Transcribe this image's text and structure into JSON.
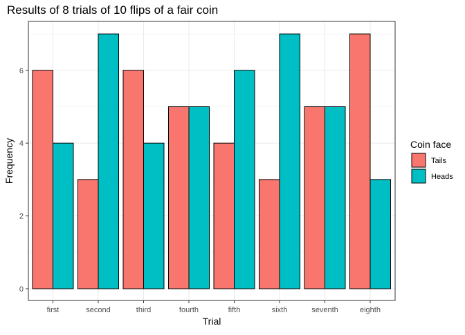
{
  "chart_data": {
    "type": "bar",
    "title": "Results of 8 trials of 10 flips of a fair coin",
    "xlabel": "Trial",
    "ylabel": "Frequency",
    "categories": [
      "first",
      "second",
      "third",
      "fourth",
      "fifth",
      "sixth",
      "seventh",
      "eighth"
    ],
    "series": [
      {
        "name": "Tails",
        "color": "#F8766D",
        "values": [
          6,
          3,
          6,
          5,
          4,
          3,
          5,
          7
        ]
      },
      {
        "name": "Heads",
        "color": "#00BFC4",
        "values": [
          4,
          7,
          4,
          5,
          6,
          7,
          5,
          3
        ]
      }
    ],
    "y_ticks": [
      0,
      2,
      4,
      6
    ],
    "ylim": [
      0,
      7
    ],
    "grid": true,
    "legend": {
      "title": "Coin face",
      "position": "right"
    }
  }
}
